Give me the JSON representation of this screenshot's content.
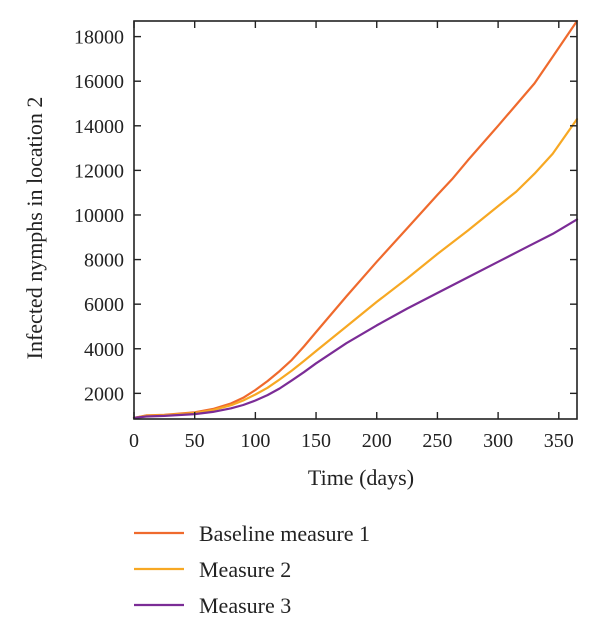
{
  "chart_data": {
    "type": "line",
    "title": "",
    "xlabel": "Time (days)",
    "ylabel": "Infected nymphs in location 2",
    "xlim": [
      0,
      365
    ],
    "ylim": [
      850,
      18700
    ],
    "xticks": [
      0,
      50,
      100,
      150,
      200,
      250,
      300,
      350
    ],
    "yticks": [
      2000,
      4000,
      6000,
      8000,
      10000,
      12000,
      14000,
      16000,
      18000
    ],
    "grid": false,
    "legend_position": "bottom",
    "series": [
      {
        "name": "Baseline measure 1",
        "color": "#ef6a2d",
        "x": [
          0,
          10,
          25,
          50,
          65,
          80,
          90,
          100,
          110,
          120,
          130,
          140,
          150,
          175,
          200,
          225,
          250,
          262,
          275,
          300,
          315,
          330,
          345,
          365
        ],
        "y": [
          900,
          1010,
          1040,
          1150,
          1300,
          1550,
          1800,
          2150,
          2550,
          3000,
          3500,
          4100,
          4750,
          6350,
          7900,
          9400,
          10900,
          11600,
          12450,
          14000,
          14950,
          15900,
          17100,
          18700
        ]
      },
      {
        "name": "Measure 2",
        "color": "#f7a823",
        "x": [
          0,
          10,
          25,
          50,
          65,
          80,
          90,
          100,
          110,
          120,
          130,
          140,
          150,
          175,
          200,
          225,
          250,
          275,
          300,
          315,
          330,
          345,
          365
        ],
        "y": [
          900,
          1000,
          1020,
          1120,
          1250,
          1470,
          1680,
          1950,
          2250,
          2620,
          3020,
          3450,
          3900,
          5000,
          6100,
          7150,
          8250,
          9300,
          10400,
          11050,
          11850,
          12750,
          14300
        ]
      },
      {
        "name": "Measure 3",
        "color": "#7b2c96",
        "x": [
          0,
          10,
          25,
          50,
          65,
          80,
          90,
          100,
          110,
          120,
          130,
          140,
          150,
          175,
          200,
          225,
          250,
          275,
          300,
          325,
          345,
          365
        ],
        "y": [
          900,
          960,
          990,
          1070,
          1170,
          1330,
          1480,
          1680,
          1920,
          2220,
          2580,
          2950,
          3350,
          4250,
          5050,
          5800,
          6500,
          7200,
          7900,
          8600,
          9150,
          9800
        ]
      }
    ]
  }
}
